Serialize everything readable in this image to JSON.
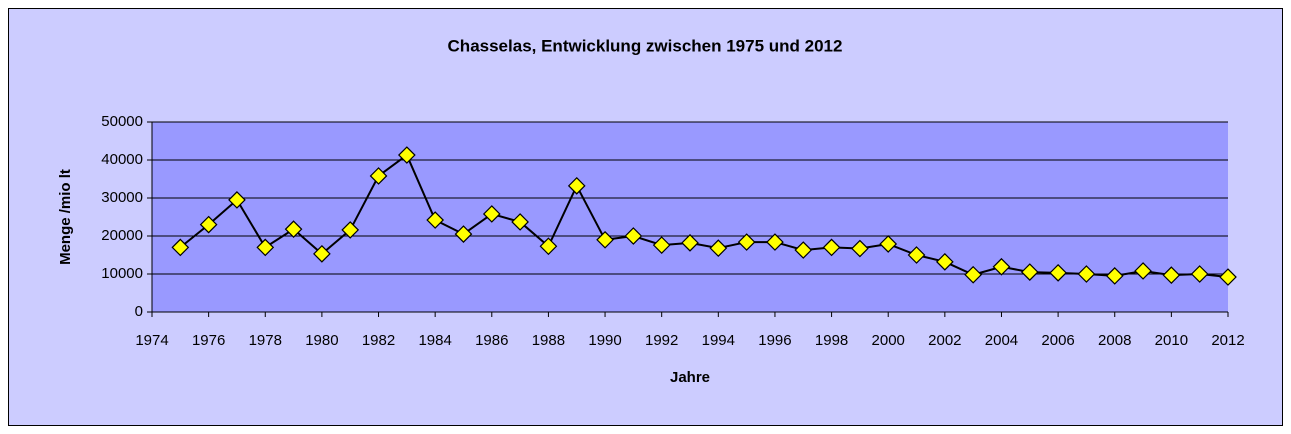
{
  "chart_data": {
    "type": "line",
    "title": "Chasselas, Entwicklung zwischen 1975 und 2012",
    "x_label": "Jahre",
    "y_label": "Menge /mio lt",
    "x": [
      1975,
      1976,
      1977,
      1978,
      1979,
      1980,
      1981,
      1982,
      1983,
      1984,
      1985,
      1986,
      1987,
      1988,
      1989,
      1990,
      1991,
      1992,
      1993,
      1994,
      1995,
      1996,
      1997,
      1998,
      1999,
      2000,
      2001,
      2002,
      2003,
      2004,
      2005,
      2006,
      2007,
      2008,
      2009,
      2010,
      2011,
      2012
    ],
    "series": [
      {
        "name": "Chasselas",
        "color": "#000000",
        "marker_color": "#ffff00",
        "values": [
          17000,
          23000,
          29500,
          17000,
          21800,
          15300,
          21600,
          35800,
          41300,
          24200,
          20500,
          25800,
          23700,
          17300,
          33200,
          19000,
          20000,
          17600,
          18200,
          16800,
          18400,
          18400,
          16300,
          17000,
          16700,
          17900,
          15000,
          13200,
          9800,
          11900,
          10500,
          10300,
          10000,
          9500,
          10800,
          9700,
          10000,
          9200
        ]
      }
    ],
    "xlim": [
      1974,
      2012
    ],
    "xticks": [
      1974,
      1976,
      1978,
      1980,
      1982,
      1984,
      1986,
      1988,
      1990,
      1992,
      1994,
      1996,
      1998,
      2000,
      2002,
      2004,
      2006,
      2008,
      2010,
      2012
    ],
    "ylim": [
      0,
      50000
    ],
    "yticks": [
      0,
      10000,
      20000,
      30000,
      40000,
      50000
    ],
    "grid": true,
    "background": "#ccccff",
    "plot_background": "#9999ff"
  }
}
